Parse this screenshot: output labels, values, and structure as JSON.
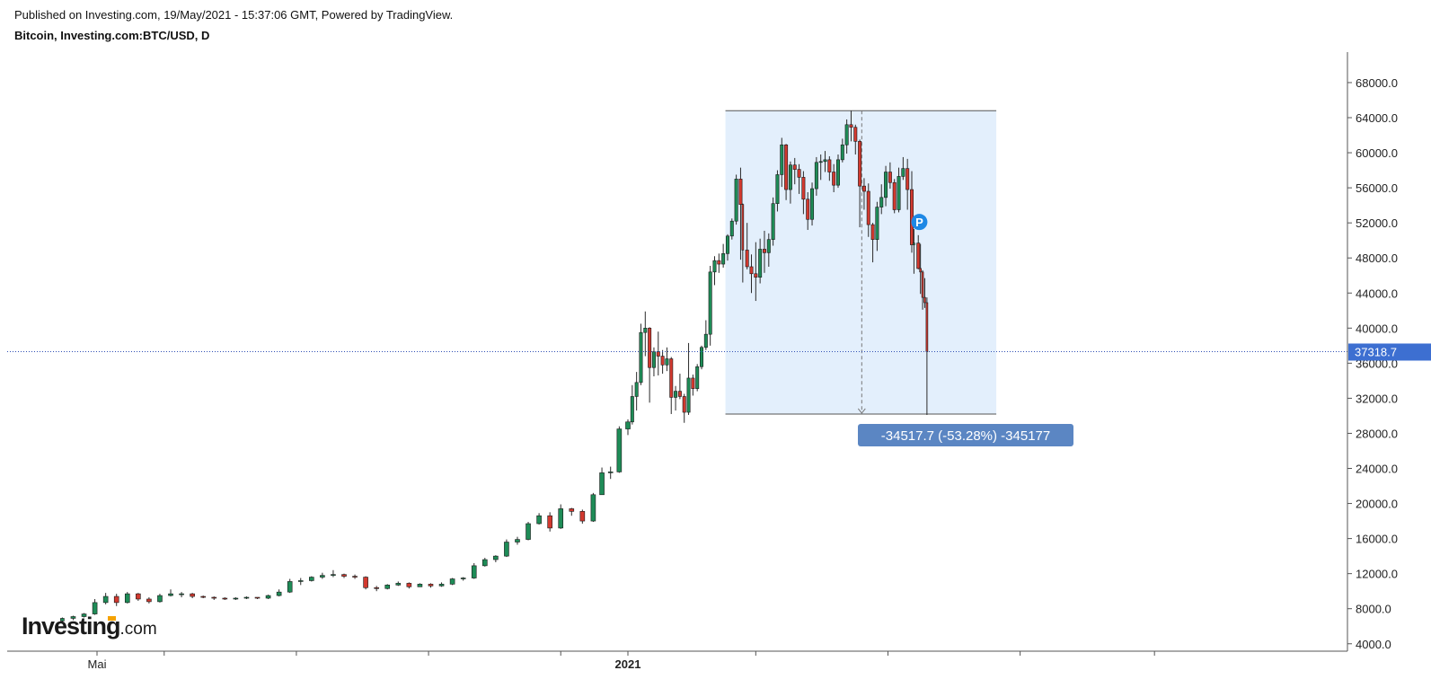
{
  "header": {
    "published": "Published on Investing.com, 19/May/2021 - 15:37:06 GMT, Powered by TradingView.",
    "instrument": "Bitcoin, Investing.com:BTC/USD, D"
  },
  "logo": {
    "word": "Investing",
    "suffix": ".com"
  },
  "colors": {
    "up": "#1e8c57",
    "down": "#d2392f",
    "wick": "#2a2a2a",
    "price_line": "#2f4fb5",
    "price_label_bg": "#3d6fd1",
    "measure_fill": "#e3effc",
    "measure_label_bg": "#5b86c3",
    "marker": "#1e88e5"
  },
  "chart_data": {
    "type": "candlestick",
    "timeframe": "D",
    "y_ticks": [
      "68000.0",
      "64000.0",
      "60000.0",
      "56000.0",
      "52000.0",
      "48000.0",
      "44000.0",
      "40000.0",
      "36000.0",
      "32000.0",
      "28000.0",
      "24000.0",
      "20000.0",
      "16000.0",
      "12000.0",
      "8000.0",
      "4000.0"
    ],
    "ylim": [
      2100,
      71400
    ],
    "x_labels": [
      {
        "label": "Mai",
        "date": "2020-05-01"
      },
      {
        "label": "",
        "date": "2020-06-01"
      },
      {
        "label": "",
        "date": "2020-08-01"
      },
      {
        "label": "",
        "date": "2020-10-01"
      },
      {
        "label": "",
        "date": "2020-12-01"
      },
      {
        "label": "2021",
        "date": "2021-01-01"
      },
      {
        "label": "",
        "date": "2021-03-01"
      },
      {
        "label": "",
        "date": "2021-05-01"
      },
      {
        "label": "",
        "date": "2021-07-01"
      },
      {
        "label": "",
        "date": "2021-09-01"
      }
    ],
    "x_range": [
      "2020-04-10",
      "2021-11-01"
    ],
    "current_price": {
      "value": 37318.7,
      "label": "37318.7"
    },
    "measurement": {
      "label": "-34517.7 (-53.28%) -345177",
      "start_date": "2021-02-15",
      "end_date": "2021-06-20",
      "high": 64800,
      "low": 30200
    },
    "marker": {
      "label": "P",
      "date": "2021-05-13",
      "value": 52100
    },
    "candles": [
      {
        "t": "2020-04-15",
        "o": 6600,
        "h": 7000,
        "l": 6500,
        "c": 6900
      },
      {
        "t": "2020-04-20",
        "o": 6900,
        "h": 7200,
        "l": 6700,
        "c": 7100
      },
      {
        "t": "2020-04-25",
        "o": 7100,
        "h": 7500,
        "l": 7000,
        "c": 7400
      },
      {
        "t": "2020-04-30",
        "o": 7400,
        "h": 9100,
        "l": 7300,
        "c": 8700
      },
      {
        "t": "2020-05-05",
        "o": 8700,
        "h": 9800,
        "l": 8500,
        "c": 9400
      },
      {
        "t": "2020-05-10",
        "o": 9400,
        "h": 9700,
        "l": 8300,
        "c": 8700
      },
      {
        "t": "2020-05-15",
        "o": 8700,
        "h": 9900,
        "l": 8600,
        "c": 9700
      },
      {
        "t": "2020-05-20",
        "o": 9700,
        "h": 9800,
        "l": 8900,
        "c": 9100
      },
      {
        "t": "2020-05-25",
        "o": 9100,
        "h": 9300,
        "l": 8600,
        "c": 8800
      },
      {
        "t": "2020-05-30",
        "o": 8800,
        "h": 9700,
        "l": 8700,
        "c": 9500
      },
      {
        "t": "2020-06-04",
        "o": 9500,
        "h": 10200,
        "l": 9400,
        "c": 9700
      },
      {
        "t": "2020-06-09",
        "o": 9700,
        "h": 9900,
        "l": 9300,
        "c": 9700
      },
      {
        "t": "2020-06-14",
        "o": 9700,
        "h": 9800,
        "l": 9200,
        "c": 9400
      },
      {
        "t": "2020-06-19",
        "o": 9400,
        "h": 9500,
        "l": 9200,
        "c": 9300
      },
      {
        "t": "2020-06-24",
        "o": 9300,
        "h": 9400,
        "l": 9000,
        "c": 9200
      },
      {
        "t": "2020-06-29",
        "o": 9200,
        "h": 9300,
        "l": 9000,
        "c": 9100
      },
      {
        "t": "2020-07-04",
        "o": 9100,
        "h": 9300,
        "l": 9000,
        "c": 9200
      },
      {
        "t": "2020-07-09",
        "o": 9200,
        "h": 9400,
        "l": 9100,
        "c": 9300
      },
      {
        "t": "2020-07-14",
        "o": 9300,
        "h": 9300,
        "l": 9100,
        "c": 9200
      },
      {
        "t": "2020-07-19",
        "o": 9200,
        "h": 9600,
        "l": 9100,
        "c": 9500
      },
      {
        "t": "2020-07-24",
        "o": 9500,
        "h": 10200,
        "l": 9400,
        "c": 9900
      },
      {
        "t": "2020-07-29",
        "o": 9900,
        "h": 11400,
        "l": 9800,
        "c": 11100
      },
      {
        "t": "2020-08-03",
        "o": 11100,
        "h": 11500,
        "l": 10700,
        "c": 11200
      },
      {
        "t": "2020-08-08",
        "o": 11200,
        "h": 11700,
        "l": 11100,
        "c": 11600
      },
      {
        "t": "2020-08-13",
        "o": 11600,
        "h": 12100,
        "l": 11400,
        "c": 11800
      },
      {
        "t": "2020-08-18",
        "o": 11800,
        "h": 12400,
        "l": 11600,
        "c": 11900
      },
      {
        "t": "2020-08-23",
        "o": 11900,
        "h": 12000,
        "l": 11500,
        "c": 11700
      },
      {
        "t": "2020-08-28",
        "o": 11700,
        "h": 11900,
        "l": 11400,
        "c": 11600
      },
      {
        "t": "2020-09-02",
        "o": 11600,
        "h": 11700,
        "l": 10200,
        "c": 10400
      },
      {
        "t": "2020-09-07",
        "o": 10400,
        "h": 10600,
        "l": 10000,
        "c": 10300
      },
      {
        "t": "2020-09-12",
        "o": 10300,
        "h": 10800,
        "l": 10200,
        "c": 10700
      },
      {
        "t": "2020-09-17",
        "o": 10700,
        "h": 11100,
        "l": 10600,
        "c": 10900
      },
      {
        "t": "2020-09-22",
        "o": 10900,
        "h": 11000,
        "l": 10300,
        "c": 10500
      },
      {
        "t": "2020-09-27",
        "o": 10500,
        "h": 10900,
        "l": 10500,
        "c": 10800
      },
      {
        "t": "2020-10-02",
        "o": 10800,
        "h": 10900,
        "l": 10400,
        "c": 10600
      },
      {
        "t": "2020-10-07",
        "o": 10600,
        "h": 11000,
        "l": 10500,
        "c": 10800
      },
      {
        "t": "2020-10-12",
        "o": 10800,
        "h": 11500,
        "l": 10700,
        "c": 11400
      },
      {
        "t": "2020-10-17",
        "o": 11400,
        "h": 11600,
        "l": 11200,
        "c": 11500
      },
      {
        "t": "2020-10-22",
        "o": 11500,
        "h": 13200,
        "l": 11400,
        "c": 12900
      },
      {
        "t": "2020-10-27",
        "o": 12900,
        "h": 13800,
        "l": 12800,
        "c": 13600
      },
      {
        "t": "2020-11-01",
        "o": 13600,
        "h": 14100,
        "l": 13300,
        "c": 14000
      },
      {
        "t": "2020-11-06",
        "o": 14000,
        "h": 15900,
        "l": 13900,
        "c": 15600
      },
      {
        "t": "2020-11-11",
        "o": 15600,
        "h": 16200,
        "l": 15300,
        "c": 15900
      },
      {
        "t": "2020-11-16",
        "o": 15900,
        "h": 17900,
        "l": 15800,
        "c": 17700
      },
      {
        "t": "2020-11-21",
        "o": 17700,
        "h": 18900,
        "l": 17600,
        "c": 18600
      },
      {
        "t": "2020-11-26",
        "o": 18600,
        "h": 19000,
        "l": 16800,
        "c": 17200
      },
      {
        "t": "2020-12-01",
        "o": 17200,
        "h": 19900,
        "l": 17100,
        "c": 19400
      },
      {
        "t": "2020-12-06",
        "o": 19400,
        "h": 19500,
        "l": 18600,
        "c": 19100
      },
      {
        "t": "2020-12-11",
        "o": 19100,
        "h": 19300,
        "l": 17700,
        "c": 18000
      },
      {
        "t": "2020-12-16",
        "o": 18000,
        "h": 21200,
        "l": 17900,
        "c": 21000
      },
      {
        "t": "2020-12-20",
        "o": 21000,
        "h": 24100,
        "l": 21000,
        "c": 23500
      },
      {
        "t": "2020-12-24",
        "o": 23500,
        "h": 24200,
        "l": 22800,
        "c": 23600
      },
      {
        "t": "2020-12-28",
        "o": 23600,
        "h": 28800,
        "l": 23500,
        "c": 28500
      },
      {
        "t": "2021-01-01",
        "o": 28500,
        "h": 29600,
        "l": 27800,
        "c": 29300
      },
      {
        "t": "2021-01-03",
        "o": 29300,
        "h": 33500,
        "l": 29000,
        "c": 32200
      },
      {
        "t": "2021-01-05",
        "o": 32200,
        "h": 35000,
        "l": 30600,
        "c": 33800
      },
      {
        "t": "2021-01-07",
        "o": 33800,
        "h": 40500,
        "l": 33500,
        "c": 39500
      },
      {
        "t": "2021-01-09",
        "o": 39500,
        "h": 41900,
        "l": 36800,
        "c": 40000
      },
      {
        "t": "2021-01-11",
        "o": 40000,
        "h": 40100,
        "l": 31500,
        "c": 35500
      },
      {
        "t": "2021-01-13",
        "o": 35500,
        "h": 37800,
        "l": 34500,
        "c": 37300
      },
      {
        "t": "2021-01-15",
        "o": 37300,
        "h": 39600,
        "l": 34600,
        "c": 36800
      },
      {
        "t": "2021-01-17",
        "o": 36800,
        "h": 37500,
        "l": 34800,
        "c": 35800
      },
      {
        "t": "2021-01-19",
        "o": 35800,
        "h": 37800,
        "l": 35100,
        "c": 36500
      },
      {
        "t": "2021-01-21",
        "o": 36500,
        "h": 36700,
        "l": 30200,
        "c": 32100
      },
      {
        "t": "2021-01-23",
        "o": 32100,
        "h": 33400,
        "l": 30600,
        "c": 32800
      },
      {
        "t": "2021-01-25",
        "o": 32800,
        "h": 34800,
        "l": 31900,
        "c": 32200
      },
      {
        "t": "2021-01-27",
        "o": 32200,
        "h": 32500,
        "l": 29200,
        "c": 30400
      },
      {
        "t": "2021-01-29",
        "o": 30400,
        "h": 38300,
        "l": 30100,
        "c": 34300
      },
      {
        "t": "2021-01-31",
        "o": 34300,
        "h": 34700,
        "l": 32300,
        "c": 33100
      },
      {
        "t": "2021-02-02",
        "o": 33100,
        "h": 35900,
        "l": 32800,
        "c": 35600
      },
      {
        "t": "2021-02-04",
        "o": 35600,
        "h": 38000,
        "l": 35300,
        "c": 37800
      },
      {
        "t": "2021-02-06",
        "o": 37800,
        "h": 40900,
        "l": 37500,
        "c": 39300
      },
      {
        "t": "2021-02-08",
        "o": 39300,
        "h": 47100,
        "l": 38000,
        "c": 46400
      },
      {
        "t": "2021-02-10",
        "o": 46400,
        "h": 48200,
        "l": 44900,
        "c": 47700
      },
      {
        "t": "2021-02-12",
        "o": 47700,
        "h": 48500,
        "l": 46300,
        "c": 47300
      },
      {
        "t": "2021-02-14",
        "o": 47300,
        "h": 49600,
        "l": 46900,
        "c": 48500
      },
      {
        "t": "2021-02-16",
        "o": 48500,
        "h": 50700,
        "l": 47700,
        "c": 50500
      },
      {
        "t": "2021-02-18",
        "o": 50500,
        "h": 52500,
        "l": 50100,
        "c": 52200
      },
      {
        "t": "2021-02-20",
        "o": 52200,
        "h": 57500,
        "l": 51800,
        "c": 57000
      },
      {
        "t": "2021-02-22",
        "o": 57000,
        "h": 58300,
        "l": 47800,
        "c": 54100
      },
      {
        "t": "2021-02-23",
        "o": 54100,
        "h": 54200,
        "l": 45200,
        "c": 48900
      },
      {
        "t": "2021-02-25",
        "o": 48900,
        "h": 52000,
        "l": 46700,
        "c": 47000
      },
      {
        "t": "2021-02-27",
        "o": 47000,
        "h": 48400,
        "l": 44000,
        "c": 46200
      },
      {
        "t": "2021-03-01",
        "o": 46200,
        "h": 49800,
        "l": 43100,
        "c": 45800
      },
      {
        "t": "2021-03-03",
        "o": 45800,
        "h": 50200,
        "l": 45100,
        "c": 49000
      },
      {
        "t": "2021-03-05",
        "o": 49000,
        "h": 51100,
        "l": 46300,
        "c": 48600
      },
      {
        "t": "2021-03-07",
        "o": 48600,
        "h": 50800,
        "l": 47000,
        "c": 50100
      },
      {
        "t": "2021-03-09",
        "o": 50100,
        "h": 54900,
        "l": 49400,
        "c": 54200
      },
      {
        "t": "2021-03-11",
        "o": 54200,
        "h": 58000,
        "l": 53300,
        "c": 57500
      },
      {
        "t": "2021-03-13",
        "o": 57500,
        "h": 61700,
        "l": 56100,
        "c": 60900
      },
      {
        "t": "2021-03-15",
        "o": 60900,
        "h": 61000,
        "l": 54600,
        "c": 55800
      },
      {
        "t": "2021-03-17",
        "o": 55800,
        "h": 59000,
        "l": 54200,
        "c": 58600
      },
      {
        "t": "2021-03-19",
        "o": 58600,
        "h": 59400,
        "l": 56400,
        "c": 58100
      },
      {
        "t": "2021-03-21",
        "o": 58100,
        "h": 58700,
        "l": 55300,
        "c": 57200
      },
      {
        "t": "2021-03-23",
        "o": 57200,
        "h": 57900,
        "l": 53000,
        "c": 54700
      },
      {
        "t": "2021-03-25",
        "o": 54700,
        "h": 55500,
        "l": 51200,
        "c": 52400
      },
      {
        "t": "2021-03-27",
        "o": 52400,
        "h": 56600,
        "l": 51700,
        "c": 55900
      },
      {
        "t": "2021-03-29",
        "o": 55900,
        "h": 59500,
        "l": 55100,
        "c": 58900
      },
      {
        "t": "2021-03-31",
        "o": 58900,
        "h": 59800,
        "l": 56900,
        "c": 59000
      },
      {
        "t": "2021-04-02",
        "o": 59000,
        "h": 60200,
        "l": 57800,
        "c": 59200
      },
      {
        "t": "2021-04-04",
        "o": 59200,
        "h": 59600,
        "l": 56800,
        "c": 57800
      },
      {
        "t": "2021-04-06",
        "o": 57800,
        "h": 58700,
        "l": 55500,
        "c": 56300
      },
      {
        "t": "2021-04-08",
        "o": 56300,
        "h": 59800,
        "l": 56000,
        "c": 59200
      },
      {
        "t": "2021-04-10",
        "o": 59200,
        "h": 61600,
        "l": 58900,
        "c": 60900
      },
      {
        "t": "2021-04-12",
        "o": 60900,
        "h": 63800,
        "l": 59900,
        "c": 63200
      },
      {
        "t": "2021-04-14",
        "o": 63200,
        "h": 64800,
        "l": 61300,
        "c": 62900
      },
      {
        "t": "2021-04-16",
        "o": 62900,
        "h": 63200,
        "l": 59800,
        "c": 61300
      },
      {
        "t": "2021-04-18",
        "o": 61300,
        "h": 61500,
        "l": 51500,
        "c": 56200
      },
      {
        "t": "2021-04-20",
        "o": 56200,
        "h": 57100,
        "l": 53500,
        "c": 55600
      },
      {
        "t": "2021-04-22",
        "o": 55600,
        "h": 56500,
        "l": 50400,
        "c": 51800
      },
      {
        "t": "2021-04-24",
        "o": 51800,
        "h": 52000,
        "l": 47500,
        "c": 50100
      },
      {
        "t": "2021-04-26",
        "o": 50100,
        "h": 54400,
        "l": 48800,
        "c": 53800
      },
      {
        "t": "2021-04-28",
        "o": 53800,
        "h": 56400,
        "l": 53000,
        "c": 54900
      },
      {
        "t": "2021-04-30",
        "o": 54900,
        "h": 58500,
        "l": 53900,
        "c": 57800
      },
      {
        "t": "2021-05-02",
        "o": 57800,
        "h": 58900,
        "l": 55900,
        "c": 56600
      },
      {
        "t": "2021-05-04",
        "o": 56600,
        "h": 57000,
        "l": 53100,
        "c": 53500
      },
      {
        "t": "2021-05-06",
        "o": 53500,
        "h": 58300,
        "l": 53200,
        "c": 57300
      },
      {
        "t": "2021-05-08",
        "o": 57300,
        "h": 59500,
        "l": 56900,
        "c": 58200
      },
      {
        "t": "2021-05-10",
        "o": 58200,
        "h": 59300,
        "l": 53500,
        "c": 55800
      },
      {
        "t": "2021-05-12",
        "o": 55800,
        "h": 57900,
        "l": 48600,
        "c": 49500
      },
      {
        "t": "2021-05-13",
        "o": 49500,
        "h": 51300,
        "l": 46200,
        "c": 49700
      },
      {
        "t": "2021-05-15",
        "o": 49700,
        "h": 50600,
        "l": 46700,
        "c": 46800
      },
      {
        "t": "2021-05-16",
        "o": 46800,
        "h": 49600,
        "l": 43900,
        "c": 46400
      },
      {
        "t": "2021-05-17",
        "o": 46400,
        "h": 46600,
        "l": 42100,
        "c": 43500
      },
      {
        "t": "2021-05-18",
        "o": 43500,
        "h": 45700,
        "l": 42300,
        "c": 42900
      },
      {
        "t": "2021-05-19",
        "o": 42900,
        "h": 43500,
        "l": 30100,
        "c": 37318.7
      }
    ]
  }
}
